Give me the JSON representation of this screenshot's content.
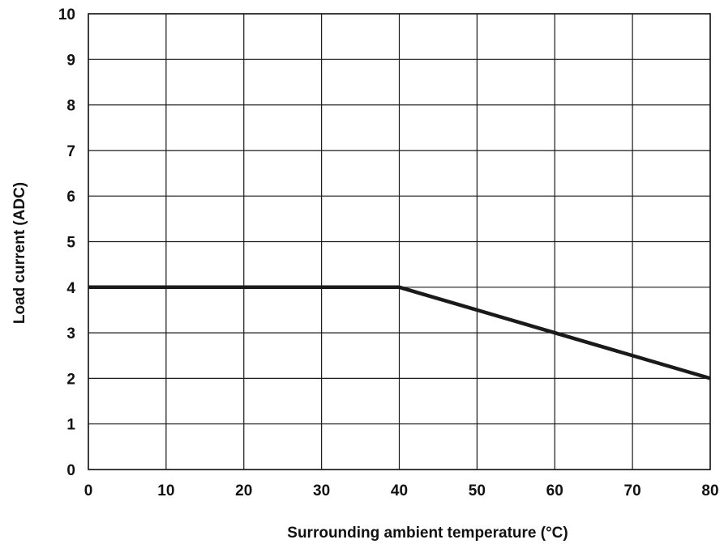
{
  "chart_data": {
    "type": "line",
    "title": "",
    "xlabel": "Surrounding ambient temperature (°C)",
    "ylabel": "Load current (ADC)",
    "xlim": [
      0,
      80
    ],
    "ylim": [
      0,
      10
    ],
    "x_ticks": [
      0,
      10,
      20,
      30,
      40,
      50,
      60,
      70,
      80
    ],
    "y_ticks": [
      0,
      1,
      2,
      3,
      4,
      5,
      6,
      7,
      8,
      9,
      10
    ],
    "grid": true,
    "legend": "none",
    "series": [
      {
        "x": [
          0,
          40,
          80
        ],
        "y": [
          4,
          4,
          2
        ]
      }
    ],
    "colors": {
      "line": "#1a1a1a",
      "grid": "#1a1a1a",
      "text": "#111111",
      "background": "#ffffff"
    }
  }
}
